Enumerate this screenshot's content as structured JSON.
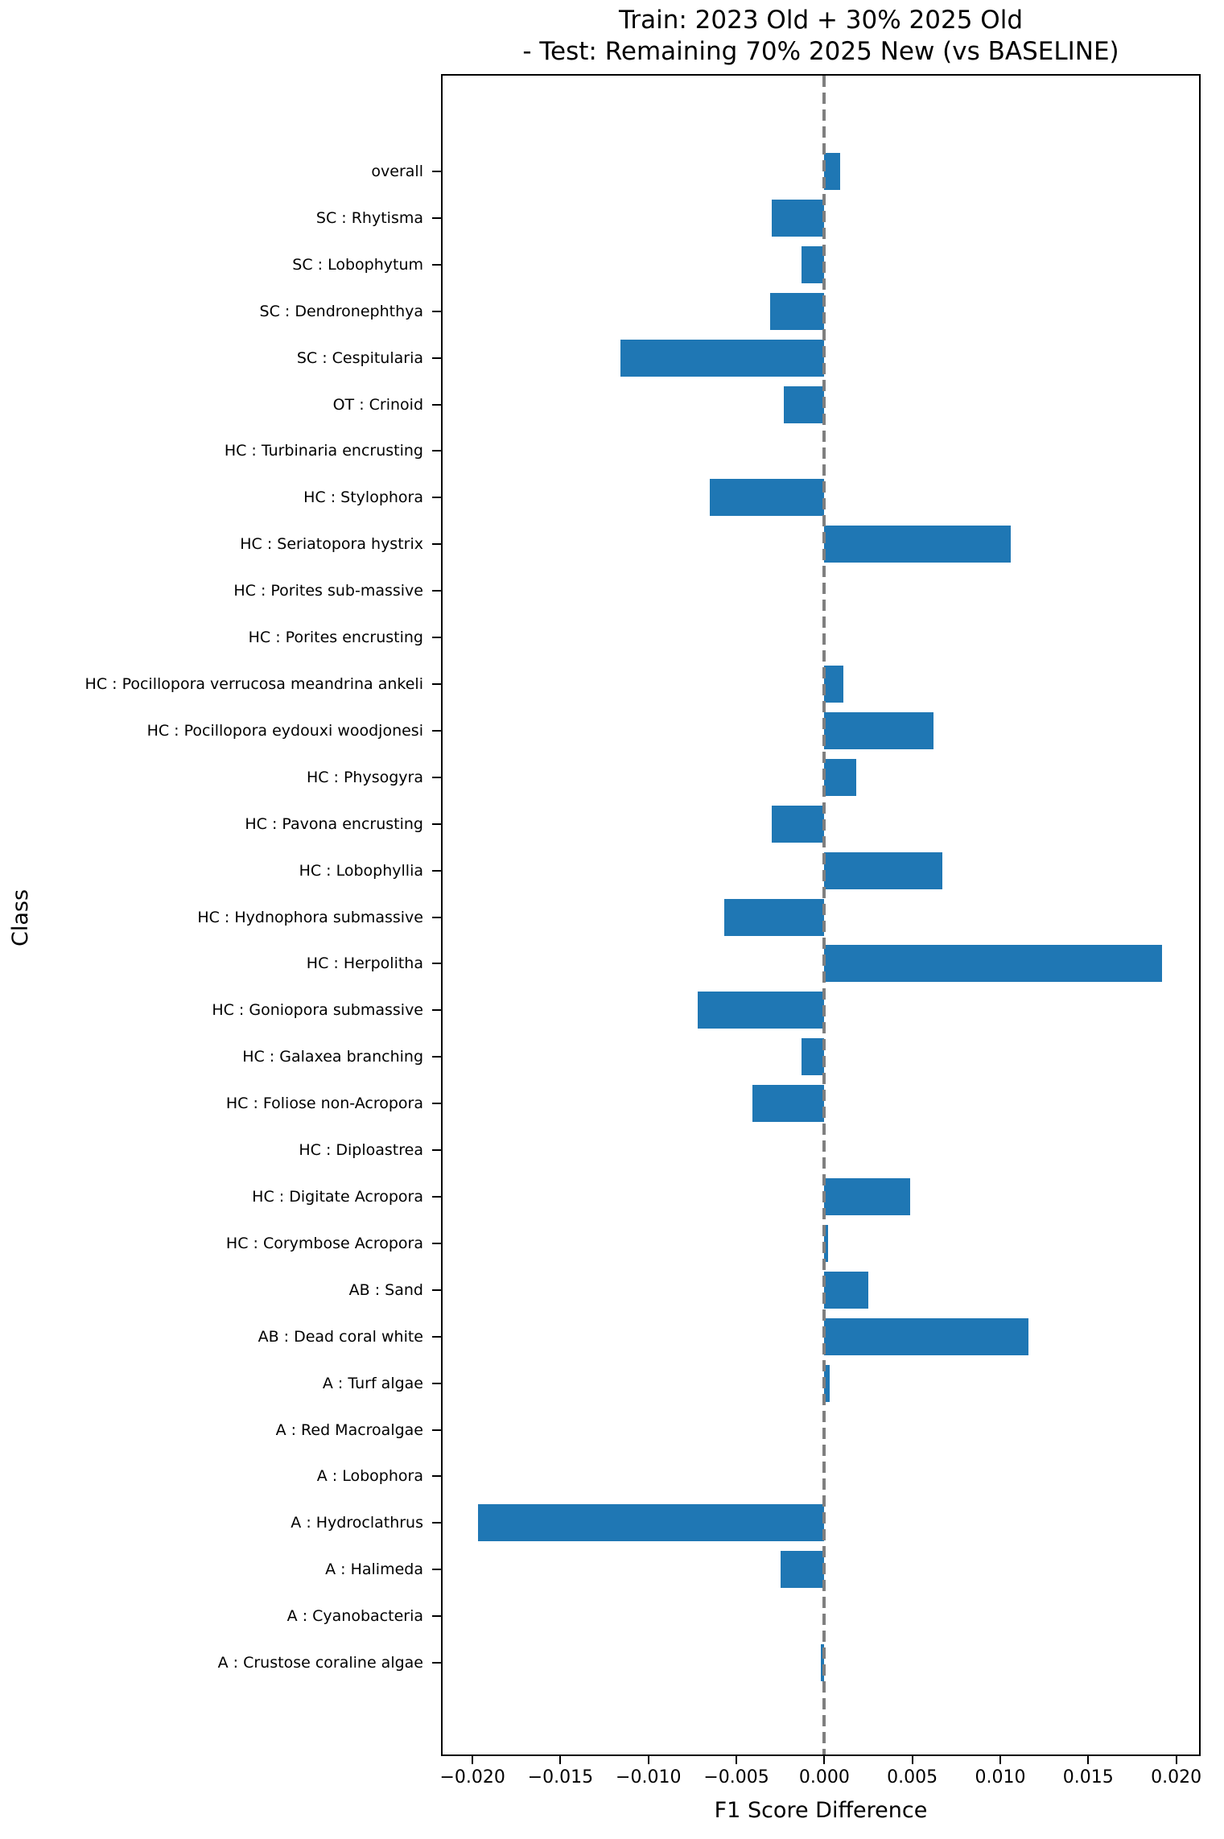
{
  "chart_data": {
    "type": "bar",
    "orientation": "horizontal",
    "title_line1": "Train: 2023 Old + 30% 2025 Old",
    "title_line2": "- Test: Remaining 70% 2025 New (vs BASELINE)",
    "xlabel": "F1 Score Difference",
    "ylabel": "Class",
    "xlim": [
      -0.0217,
      0.0213
    ],
    "grid": false,
    "legend": "none",
    "bar_color": "#1f77b4",
    "zero_line_color": "#7f7f7f",
    "zero_line_style": "dashed",
    "x_ticks": [
      -0.02,
      -0.015,
      -0.01,
      -0.005,
      0.0,
      0.005,
      0.01,
      0.015,
      0.02
    ],
    "x_tick_labels": [
      "−0.020",
      "−0.015",
      "−0.010",
      "−0.005",
      "0.000",
      "0.005",
      "0.010",
      "0.015",
      "0.020"
    ],
    "categories_top_to_bottom": [
      "overall",
      "SC : Rhytisma",
      "SC : Lobophytum",
      "SC : Dendronephthya",
      "SC : Cespitularia",
      "OT : Crinoid",
      "HC : Turbinaria encrusting",
      "HC : Stylophora",
      "HC : Seriatopora hystrix",
      "HC : Porites sub-massive",
      "HC : Porites encrusting",
      "HC : Pocillopora verrucosa meandrina ankeli",
      "HC : Pocillopora eydouxi woodjonesi",
      "HC : Physogyra",
      "HC : Pavona encrusting",
      "HC : Lobophyllia",
      "HC : Hydnophora submassive",
      "HC : Herpolitha",
      "HC : Goniopora submassive",
      "HC : Galaxea branching",
      "HC : Foliose non-Acropora",
      "HC : Diploastrea",
      "HC : Digitate Acropora",
      "HC : Corymbose Acropora",
      "AB : Sand",
      "AB : Dead coral white",
      "A : Turf algae",
      "A : Red Macroalgae",
      "A : Lobophora",
      "A : Hydroclathrus",
      "A : Halimeda",
      "A : Cyanobacteria",
      "A : Crustose coraline algae"
    ],
    "values": [
      0.0009,
      -0.003,
      -0.0013,
      -0.0031,
      -0.0116,
      -0.0023,
      0,
      -0.0065,
      0.0106,
      0,
      0,
      0.0011,
      0.0062,
      0.0018,
      -0.003,
      0.0067,
      -0.0057,
      0.0192,
      -0.0072,
      -0.0013,
      -0.0041,
      0,
      0.0049,
      0.0002,
      0.0025,
      0.0116,
      0.0003,
      0,
      0,
      -0.0197,
      -0.0025,
      0,
      -0.0002
    ]
  }
}
